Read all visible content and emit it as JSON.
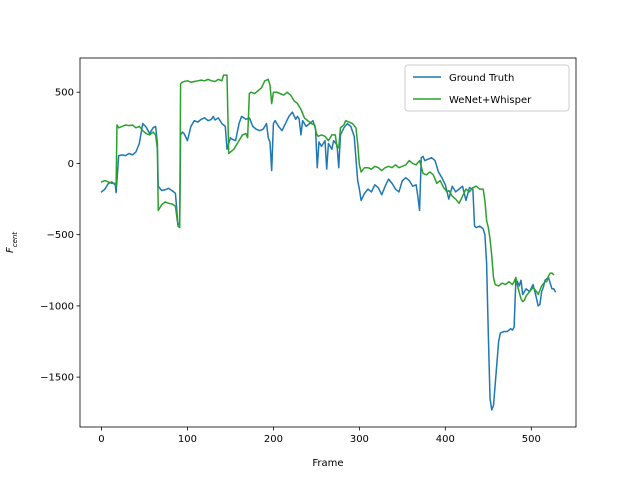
{
  "chart_data": {
    "type": "line",
    "title": "",
    "xlabel": "Frame",
    "ylabel": "F",
    "ylabel_subscript": "cent",
    "xlim": [
      -25,
      552
    ],
    "ylim": [
      -1850,
      740
    ],
    "xticks": [
      0,
      100,
      200,
      300,
      400,
      500
    ],
    "xtick_labels": [
      "0",
      "100",
      "200",
      "300",
      "400",
      "500"
    ],
    "yticks": [
      -1500,
      -1000,
      -500,
      0,
      500
    ],
    "ytick_labels": [
      "−1500",
      "−1000",
      "−500",
      "0",
      "500"
    ],
    "grid": false,
    "legend_position": "upper right",
    "series": [
      {
        "name": "Ground Truth",
        "color": "#1f77b4",
        "points": [
          [
            0,
            -200
          ],
          [
            4,
            -180
          ],
          [
            8,
            -140
          ],
          [
            12,
            -130
          ],
          [
            16,
            -150
          ],
          [
            17,
            -205
          ],
          [
            18,
            -120
          ],
          [
            20,
            55
          ],
          [
            24,
            60
          ],
          [
            28,
            55
          ],
          [
            32,
            70
          ],
          [
            36,
            60
          ],
          [
            40,
            80
          ],
          [
            44,
            140
          ],
          [
            48,
            280
          ],
          [
            52,
            255
          ],
          [
            56,
            210
          ],
          [
            60,
            250
          ],
          [
            63,
            260
          ],
          [
            65,
            140
          ],
          [
            66,
            -160
          ],
          [
            70,
            -190
          ],
          [
            74,
            -185
          ],
          [
            78,
            -175
          ],
          [
            82,
            -190
          ],
          [
            86,
            -210
          ],
          [
            89,
            -430
          ],
          [
            91,
            -420
          ],
          [
            92,
            200
          ],
          [
            94,
            220
          ],
          [
            96,
            210
          ],
          [
            100,
            160
          ],
          [
            104,
            260
          ],
          [
            108,
            300
          ],
          [
            112,
            290
          ],
          [
            116,
            310
          ],
          [
            120,
            320
          ],
          [
            124,
            300
          ],
          [
            128,
            310
          ],
          [
            130,
            330
          ],
          [
            132,
            305
          ],
          [
            136,
            320
          ],
          [
            140,
            280
          ],
          [
            144,
            260
          ],
          [
            146,
            100
          ],
          [
            148,
            140
          ],
          [
            150,
            180
          ],
          [
            152,
            170
          ],
          [
            156,
            160
          ],
          [
            160,
            280
          ],
          [
            163,
            330
          ],
          [
            168,
            310
          ],
          [
            172,
            320
          ],
          [
            176,
            260
          ],
          [
            180,
            240
          ],
          [
            184,
            230
          ],
          [
            188,
            240
          ],
          [
            192,
            280
          ],
          [
            194,
            180
          ],
          [
            196,
            150
          ],
          [
            198,
            -50
          ],
          [
            200,
            280
          ],
          [
            202,
            300
          ],
          [
            206,
            260
          ],
          [
            210,
            230
          ],
          [
            214,
            280
          ],
          [
            218,
            330
          ],
          [
            222,
            360
          ],
          [
            226,
            310
          ],
          [
            228,
            330
          ],
          [
            230,
            310
          ],
          [
            232,
            200
          ],
          [
            234,
            300
          ],
          [
            238,
            260
          ],
          [
            242,
            280
          ],
          [
            246,
            300
          ],
          [
            249,
            240
          ],
          [
            251,
            -30
          ],
          [
            253,
            150
          ],
          [
            256,
            120
          ],
          [
            260,
            160
          ],
          [
            262,
            -40
          ],
          [
            264,
            140
          ],
          [
            268,
            100
          ],
          [
            270,
            160
          ],
          [
            274,
            130
          ],
          [
            276,
            -30
          ],
          [
            278,
            200
          ],
          [
            282,
            250
          ],
          [
            286,
            280
          ],
          [
            290,
            260
          ],
          [
            294,
            190
          ],
          [
            298,
            -120
          ],
          [
            300,
            -180
          ],
          [
            302,
            -260
          ],
          [
            306,
            -210
          ],
          [
            310,
            -180
          ],
          [
            314,
            -200
          ],
          [
            318,
            -150
          ],
          [
            322,
            -170
          ],
          [
            326,
            -220
          ],
          [
            330,
            -160
          ],
          [
            334,
            -110
          ],
          [
            338,
            -140
          ],
          [
            342,
            -180
          ],
          [
            346,
            -200
          ],
          [
            350,
            -120
          ],
          [
            354,
            -100
          ],
          [
            358,
            -120
          ],
          [
            362,
            -160
          ],
          [
            366,
            -150
          ],
          [
            368,
            -230
          ],
          [
            370,
            -330
          ],
          [
            372,
            40
          ],
          [
            374,
            50
          ],
          [
            376,
            20
          ],
          [
            380,
            30
          ],
          [
            384,
            40
          ],
          [
            388,
            20
          ],
          [
            392,
            -60
          ],
          [
            396,
            -100
          ],
          [
            400,
            -150
          ],
          [
            404,
            -250
          ],
          [
            408,
            -160
          ],
          [
            412,
            -200
          ],
          [
            416,
            -180
          ],
          [
            420,
            -160
          ],
          [
            424,
            -260
          ],
          [
            428,
            -170
          ],
          [
            432,
            -180
          ],
          [
            434,
            -440
          ],
          [
            436,
            -450
          ],
          [
            440,
            -440
          ],
          [
            444,
            -460
          ],
          [
            446,
            -500
          ],
          [
            448,
            -700
          ],
          [
            450,
            -1200
          ],
          [
            452,
            -1650
          ],
          [
            454,
            -1730
          ],
          [
            456,
            -1700
          ],
          [
            458,
            -1550
          ],
          [
            460,
            -1400
          ],
          [
            462,
            -1250
          ],
          [
            464,
            -1190
          ],
          [
            468,
            -1180
          ],
          [
            472,
            -1180
          ],
          [
            476,
            -1160
          ],
          [
            478,
            -1170
          ],
          [
            480,
            -1150
          ],
          [
            482,
            -820
          ],
          [
            484,
            -830
          ],
          [
            486,
            -860
          ],
          [
            488,
            -820
          ],
          [
            490,
            -920
          ],
          [
            494,
            -880
          ],
          [
            498,
            -900
          ],
          [
            502,
            -850
          ],
          [
            505,
            -920
          ],
          [
            508,
            -1000
          ],
          [
            510,
            -990
          ],
          [
            512,
            -900
          ],
          [
            514,
            -870
          ],
          [
            516,
            -820
          ],
          [
            520,
            -800
          ],
          [
            524,
            -880
          ],
          [
            526,
            -880
          ],
          [
            528,
            -900
          ]
        ]
      },
      {
        "name": "WeNet+Whisper",
        "color": "#2ca02c",
        "points": [
          [
            0,
            -130
          ],
          [
            4,
            -120
          ],
          [
            8,
            -130
          ],
          [
            12,
            -140
          ],
          [
            16,
            -140
          ],
          [
            17,
            -160
          ],
          [
            18,
            270
          ],
          [
            20,
            250
          ],
          [
            24,
            260
          ],
          [
            28,
            270
          ],
          [
            32,
            265
          ],
          [
            36,
            270
          ],
          [
            40,
            250
          ],
          [
            44,
            260
          ],
          [
            48,
            230
          ],
          [
            52,
            210
          ],
          [
            56,
            200
          ],
          [
            60,
            220
          ],
          [
            63,
            200
          ],
          [
            65,
            100
          ],
          [
            66,
            -330
          ],
          [
            70,
            -290
          ],
          [
            74,
            -270
          ],
          [
            78,
            -280
          ],
          [
            82,
            -285
          ],
          [
            86,
            -300
          ],
          [
            89,
            -440
          ],
          [
            91,
            -450
          ],
          [
            92,
            560
          ],
          [
            94,
            570
          ],
          [
            96,
            575
          ],
          [
            100,
            580
          ],
          [
            104,
            570
          ],
          [
            108,
            575
          ],
          [
            112,
            580
          ],
          [
            116,
            585
          ],
          [
            120,
            580
          ],
          [
            124,
            590
          ],
          [
            128,
            580
          ],
          [
            132,
            575
          ],
          [
            136,
            590
          ],
          [
            140,
            580
          ],
          [
            142,
            620
          ],
          [
            146,
            620
          ],
          [
            148,
            70
          ],
          [
            150,
            80
          ],
          [
            154,
            100
          ],
          [
            156,
            120
          ],
          [
            158,
            140
          ],
          [
            160,
            160
          ],
          [
            164,
            200
          ],
          [
            168,
            210
          ],
          [
            170,
            180
          ],
          [
            172,
            490
          ],
          [
            174,
            500
          ],
          [
            178,
            490
          ],
          [
            182,
            510
          ],
          [
            186,
            530
          ],
          [
            190,
            580
          ],
          [
            194,
            590
          ],
          [
            196,
            550
          ],
          [
            198,
            420
          ],
          [
            200,
            500
          ],
          [
            204,
            500
          ],
          [
            208,
            490
          ],
          [
            212,
            480
          ],
          [
            216,
            500
          ],
          [
            220,
            480
          ],
          [
            224,
            440
          ],
          [
            228,
            420
          ],
          [
            232,
            380
          ],
          [
            236,
            320
          ],
          [
            240,
            300
          ],
          [
            244,
            280
          ],
          [
            248,
            270
          ],
          [
            250,
            210
          ],
          [
            252,
            190
          ],
          [
            256,
            200
          ],
          [
            260,
            190
          ],
          [
            264,
            160
          ],
          [
            268,
            200
          ],
          [
            272,
            200
          ],
          [
            274,
            110
          ],
          [
            276,
            110
          ],
          [
            278,
            250
          ],
          [
            282,
            270
          ],
          [
            284,
            300
          ],
          [
            288,
            290
          ],
          [
            292,
            280
          ],
          [
            296,
            250
          ],
          [
            298,
            140
          ],
          [
            300,
            -10
          ],
          [
            302,
            -60
          ],
          [
            306,
            -30
          ],
          [
            310,
            -30
          ],
          [
            314,
            -40
          ],
          [
            318,
            -20
          ],
          [
            322,
            -30
          ],
          [
            326,
            -50
          ],
          [
            330,
            -30
          ],
          [
            334,
            -20
          ],
          [
            338,
            -30
          ],
          [
            342,
            -10
          ],
          [
            346,
            -30
          ],
          [
            350,
            -20
          ],
          [
            354,
            -10
          ],
          [
            358,
            20
          ],
          [
            362,
            0
          ],
          [
            366,
            -10
          ],
          [
            370,
            20
          ],
          [
            372,
            -20
          ],
          [
            374,
            -70
          ],
          [
            378,
            -80
          ],
          [
            382,
            -60
          ],
          [
            386,
            -80
          ],
          [
            390,
            -140
          ],
          [
            394,
            -120
          ],
          [
            398,
            -170
          ],
          [
            402,
            -200
          ],
          [
            404,
            -190
          ],
          [
            408,
            -230
          ],
          [
            412,
            -250
          ],
          [
            416,
            -280
          ],
          [
            420,
            -230
          ],
          [
            424,
            -180
          ],
          [
            428,
            -200
          ],
          [
            432,
            -170
          ],
          [
            436,
            -160
          ],
          [
            440,
            -180
          ],
          [
            444,
            -180
          ],
          [
            446,
            -260
          ],
          [
            448,
            -400
          ],
          [
            450,
            -450
          ],
          [
            452,
            -530
          ],
          [
            454,
            -650
          ],
          [
            456,
            -800
          ],
          [
            458,
            -850
          ],
          [
            462,
            -860
          ],
          [
            466,
            -840
          ],
          [
            470,
            -850
          ],
          [
            474,
            -830
          ],
          [
            478,
            -850
          ],
          [
            480,
            -830
          ],
          [
            482,
            -800
          ],
          [
            484,
            -860
          ],
          [
            488,
            -950
          ],
          [
            490,
            -970
          ],
          [
            492,
            -960
          ],
          [
            494,
            -930
          ],
          [
            498,
            -900
          ],
          [
            502,
            -870
          ],
          [
            506,
            -900
          ],
          [
            508,
            -920
          ],
          [
            512,
            -860
          ],
          [
            516,
            -830
          ],
          [
            518,
            -830
          ],
          [
            520,
            -790
          ],
          [
            522,
            -770
          ],
          [
            524,
            -770
          ],
          [
            526,
            -780
          ]
        ]
      }
    ]
  }
}
